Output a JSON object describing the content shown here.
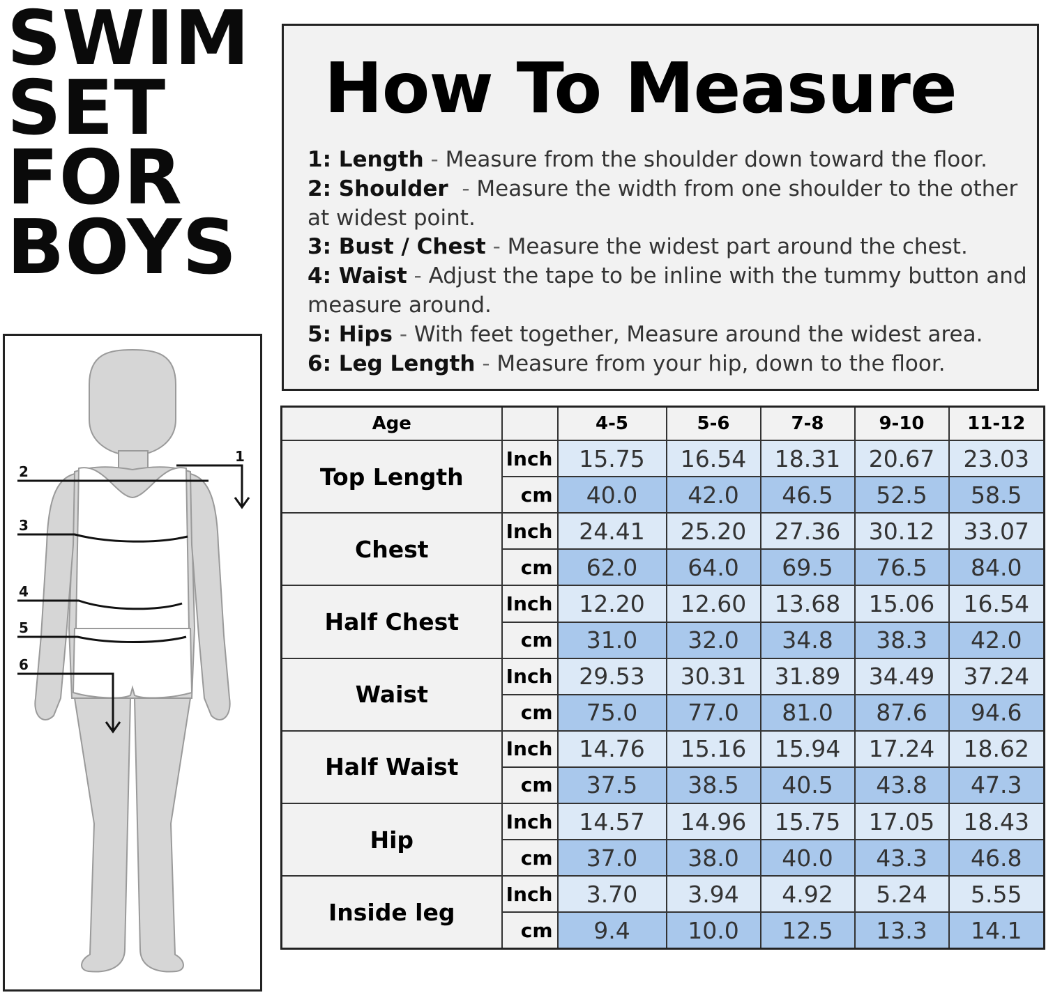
{
  "title_lines": [
    "SWIM",
    "SET",
    "FOR",
    "BOYS"
  ],
  "how_to": {
    "heading": "How To Measure",
    "steps": [
      {
        "label": "1: Length",
        "text": "Measure from the shoulder down toward the floor."
      },
      {
        "label": "2: Shoulder",
        "text": "Measure the width from one shoulder to the other at widest point."
      },
      {
        "label": "3: Bust / Chest",
        "text": "Measure the widest part around the chest."
      },
      {
        "label": "4: Waist",
        "text": "Adjust the tape to be inline with the tummy button and measure around."
      },
      {
        "label": "5: Hips",
        "text": "With feet together, Measure around the widest area."
      },
      {
        "label": "6: Leg Length",
        "text": "Measure from your hip, down to the floor."
      }
    ]
  },
  "figure": {
    "marker_labels": [
      "1",
      "2",
      "3",
      "4",
      "5",
      "6"
    ]
  },
  "size_table": {
    "age_header": "Age",
    "ages": [
      "4-5",
      "5-6",
      "7-8",
      "9-10",
      "11-12"
    ],
    "unit_inch": "Inch",
    "unit_cm": "cm",
    "rows": [
      {
        "label": "Top Length",
        "inch": [
          "15.75",
          "16.54",
          "18.31",
          "20.67",
          "23.03"
        ],
        "cm": [
          "40.0",
          "42.0",
          "46.5",
          "52.5",
          "58.5"
        ]
      },
      {
        "label": "Chest",
        "inch": [
          "24.41",
          "25.20",
          "27.36",
          "30.12",
          "33.07"
        ],
        "cm": [
          "62.0",
          "64.0",
          "69.5",
          "76.5",
          "84.0"
        ]
      },
      {
        "label": "Half Chest",
        "inch": [
          "12.20",
          "12.60",
          "13.68",
          "15.06",
          "16.54"
        ],
        "cm": [
          "31.0",
          "32.0",
          "34.8",
          "38.3",
          "42.0"
        ]
      },
      {
        "label": "Waist",
        "inch": [
          "29.53",
          "30.31",
          "31.89",
          "34.49",
          "37.24"
        ],
        "cm": [
          "75.0",
          "77.0",
          "81.0",
          "87.6",
          "94.6"
        ]
      },
      {
        "label": "Half Waist",
        "inch": [
          "14.76",
          "15.16",
          "15.94",
          "17.24",
          "18.62"
        ],
        "cm": [
          "37.5",
          "38.5",
          "40.5",
          "43.8",
          "47.3"
        ]
      },
      {
        "label": "Hip",
        "inch": [
          "14.57",
          "14.96",
          "15.75",
          "17.05",
          "18.43"
        ],
        "cm": [
          "37.0",
          "38.0",
          "40.0",
          "43.3",
          "46.8"
        ]
      },
      {
        "label": "Inside leg",
        "inch": [
          "3.70",
          "3.94",
          "4.92",
          "5.24",
          "5.55"
        ],
        "cm": [
          "9.4",
          "10.0",
          "12.5",
          "13.3",
          "14.1"
        ]
      }
    ]
  },
  "colors": {
    "inch_cell": "#dce9f7",
    "cm_cell": "#a9c8ec",
    "panel_bg": "#f2f2f2",
    "figure_fill": "#d6d6d6"
  }
}
